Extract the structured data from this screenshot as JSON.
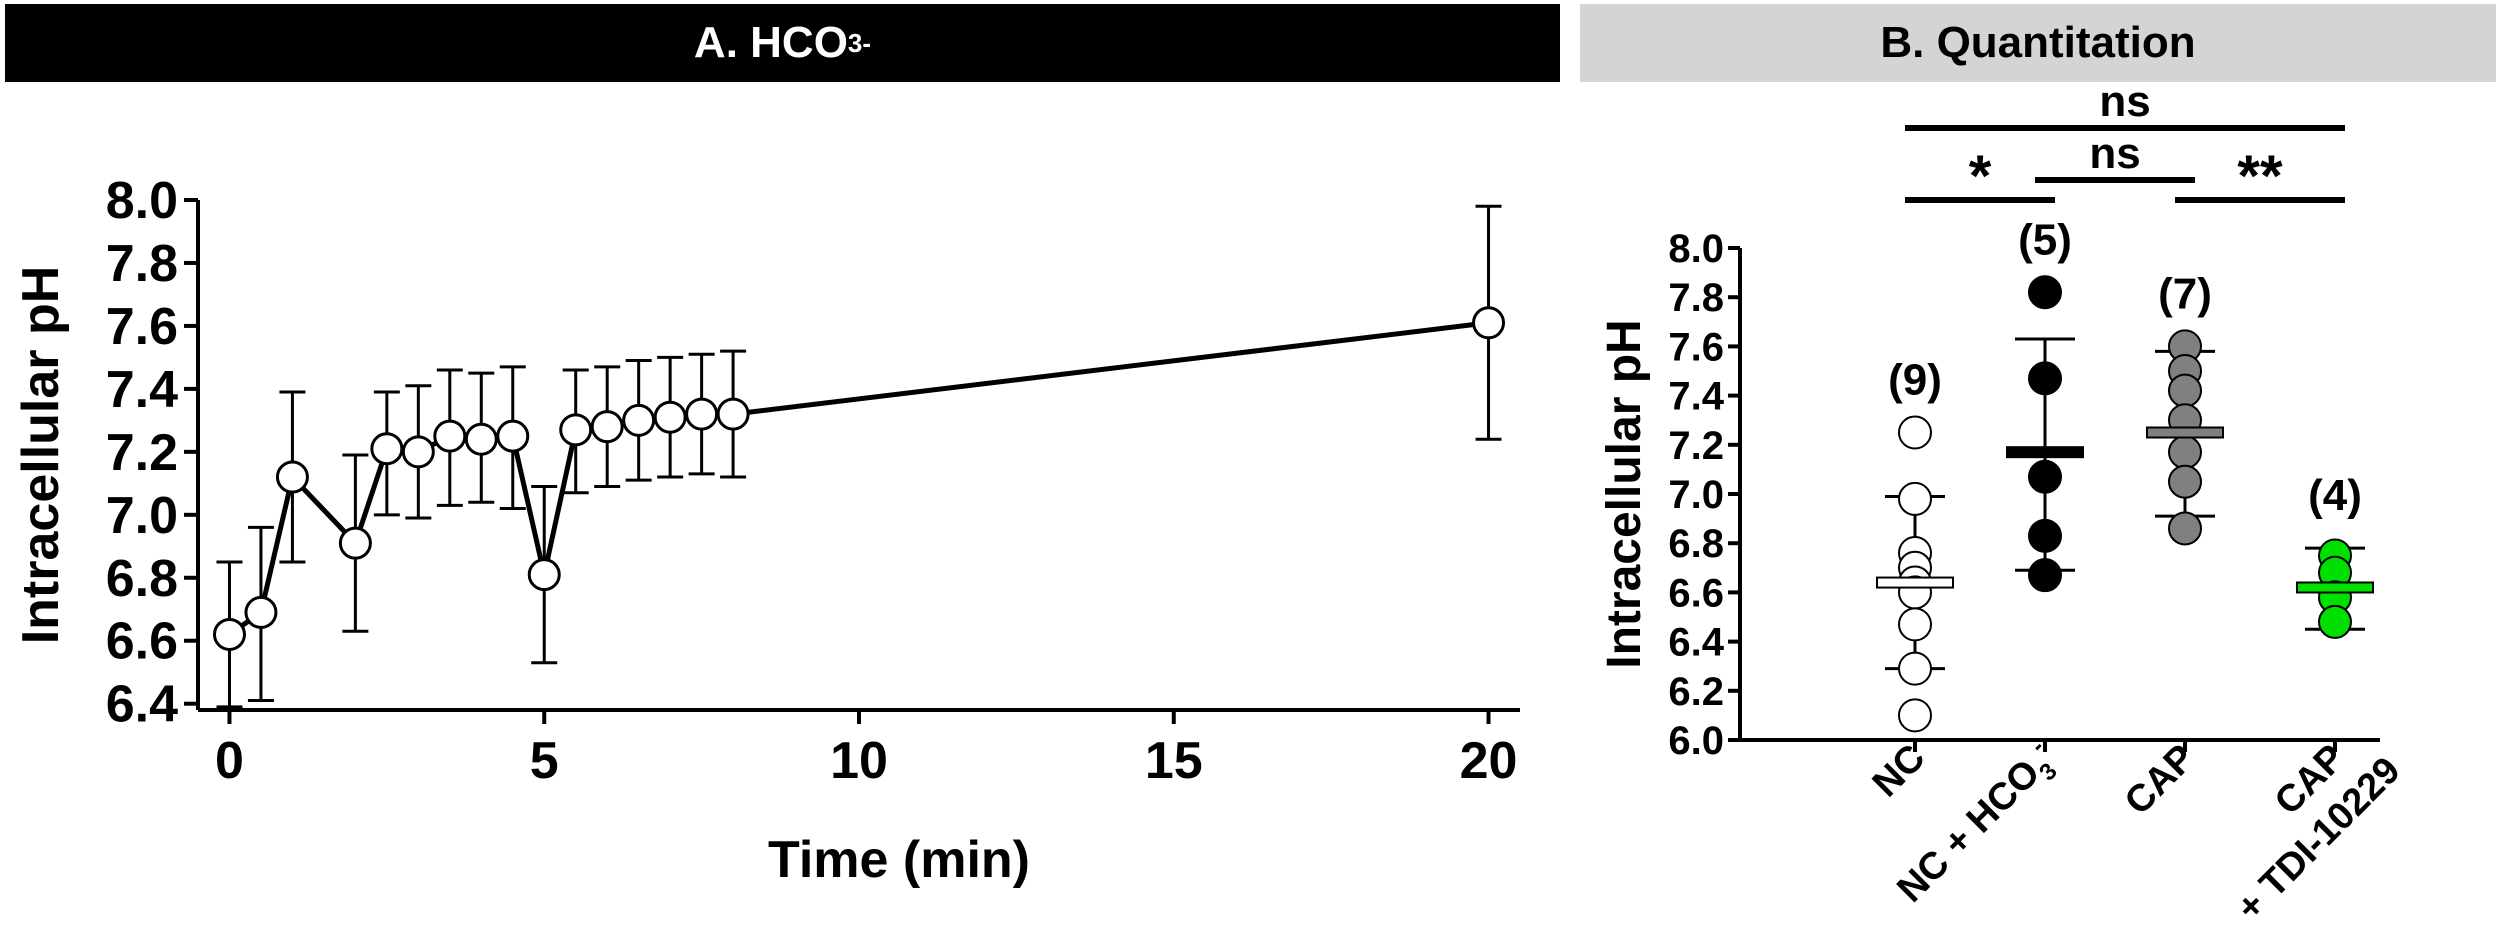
{
  "panel_a": {
    "title_main": "A. HCO",
    "title_sub": "3",
    "title_sup": "-"
  },
  "panel_b": {
    "title": "B. Quantitation"
  },
  "chart_data": [
    {
      "type": "line",
      "panel": "A",
      "xlabel": "Time (min)",
      "ylabel": "Intracellular pH",
      "xlim": [
        -0.5,
        20.5
      ],
      "ylim": [
        6.38,
        8.0
      ],
      "xticks": [
        0,
        5,
        10,
        15,
        20
      ],
      "yticks": [
        6.4,
        6.6,
        6.8,
        7.0,
        7.2,
        7.4,
        7.6,
        7.8,
        8.0
      ],
      "marker": "open-circle",
      "series": [
        {
          "x": [
            0,
            0.5,
            1,
            2,
            2.5,
            3,
            3.5,
            4,
            4.5,
            5,
            5.5,
            6,
            6.5,
            7,
            7.5,
            8,
            20
          ],
          "y": [
            6.62,
            6.69,
            7.12,
            6.91,
            7.21,
            7.2,
            7.25,
            7.24,
            7.25,
            6.81,
            7.27,
            7.28,
            7.3,
            7.31,
            7.32,
            7.32,
            7.61
          ],
          "err_low": [
            6.39,
            6.41,
            6.85,
            6.63,
            7.0,
            6.99,
            7.03,
            7.04,
            7.02,
            6.53,
            7.07,
            7.09,
            7.11,
            7.12,
            7.13,
            7.12,
            7.24
          ],
          "err_high": [
            6.85,
            6.96,
            7.39,
            7.19,
            7.39,
            7.41,
            7.46,
            7.45,
            7.47,
            7.09,
            7.46,
            7.47,
            7.49,
            7.5,
            7.51,
            7.52,
            7.98
          ]
        }
      ]
    },
    {
      "type": "scatter",
      "panel": "B",
      "ylabel": "Intracellular pH",
      "ylim": [
        6.0,
        8.0
      ],
      "yticks": [
        6.0,
        6.2,
        6.4,
        6.6,
        6.8,
        7.0,
        7.2,
        7.4,
        7.6,
        7.8,
        8.0
      ],
      "categories": [
        {
          "line1": "NC",
          "line2": "",
          "sub": "",
          "sup": ""
        },
        {
          "line1": "NC + HCO",
          "line2": "",
          "sub": "3",
          "sup": "-"
        },
        {
          "line1": "CAP",
          "line2": "",
          "sub": "",
          "sup": ""
        },
        {
          "line1": "CAP",
          "line2": "+ TDI-10229",
          "sub": "",
          "sup": ""
        }
      ],
      "groups": [
        {
          "n_label": "(9)",
          "color": "#ffffff",
          "mean": 6.64,
          "sd_low": 6.29,
          "sd_high": 6.99,
          "points": [
            7.25,
            6.98,
            6.76,
            6.7,
            6.64,
            6.6,
            6.47,
            6.29,
            6.1
          ]
        },
        {
          "n_label": "(5)",
          "color": "#000000",
          "mean": 7.17,
          "sd_low": 6.69,
          "sd_high": 7.63,
          "points": [
            7.82,
            7.47,
            7.07,
            6.83,
            6.67
          ]
        },
        {
          "n_label": "(7)",
          "color": "#808080",
          "mean": 7.25,
          "sd_low": 6.91,
          "sd_high": 7.58,
          "points": [
            7.6,
            7.5,
            7.42,
            7.3,
            7.17,
            7.05,
            6.86
          ]
        },
        {
          "n_label": "(4)",
          "color": "#00e000",
          "mean": 6.62,
          "sd_low": 6.45,
          "sd_high": 6.78,
          "points": [
            6.75,
            6.68,
            6.58,
            6.48
          ]
        }
      ],
      "significance": [
        {
          "from": 0,
          "to": 3,
          "label": "ns",
          "level": 2
        },
        {
          "from": 1,
          "to": 2,
          "label": "ns",
          "level": 1
        },
        {
          "from": 0,
          "to": 1,
          "label": "*",
          "level": 0
        },
        {
          "from": 2,
          "to": 3,
          "label": "**",
          "level": 0
        }
      ]
    }
  ]
}
